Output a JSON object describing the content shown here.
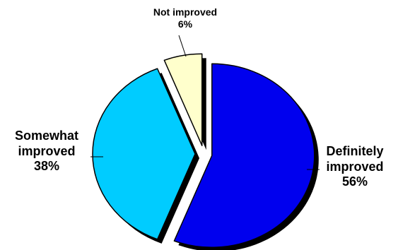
{
  "chart_data": {
    "type": "pie",
    "title": "",
    "exploded": true,
    "three_d_shadow": true,
    "slices": [
      {
        "label_lines": [
          "Definitely",
          "improved"
        ],
        "value": 56,
        "value_text": "56%",
        "color": "#0000ee"
      },
      {
        "label_lines": [
          "Somewhat",
          "improved"
        ],
        "value": 38,
        "value_text": "38%",
        "color": "#00ccff"
      },
      {
        "label_lines": [
          "Not improved"
        ],
        "value": 6,
        "value_text": "6%",
        "color": "#ffffcc"
      }
    ],
    "slice_outline_color": "#000000",
    "shadow_color": "#000000",
    "leader_line_color": "#000000"
  }
}
